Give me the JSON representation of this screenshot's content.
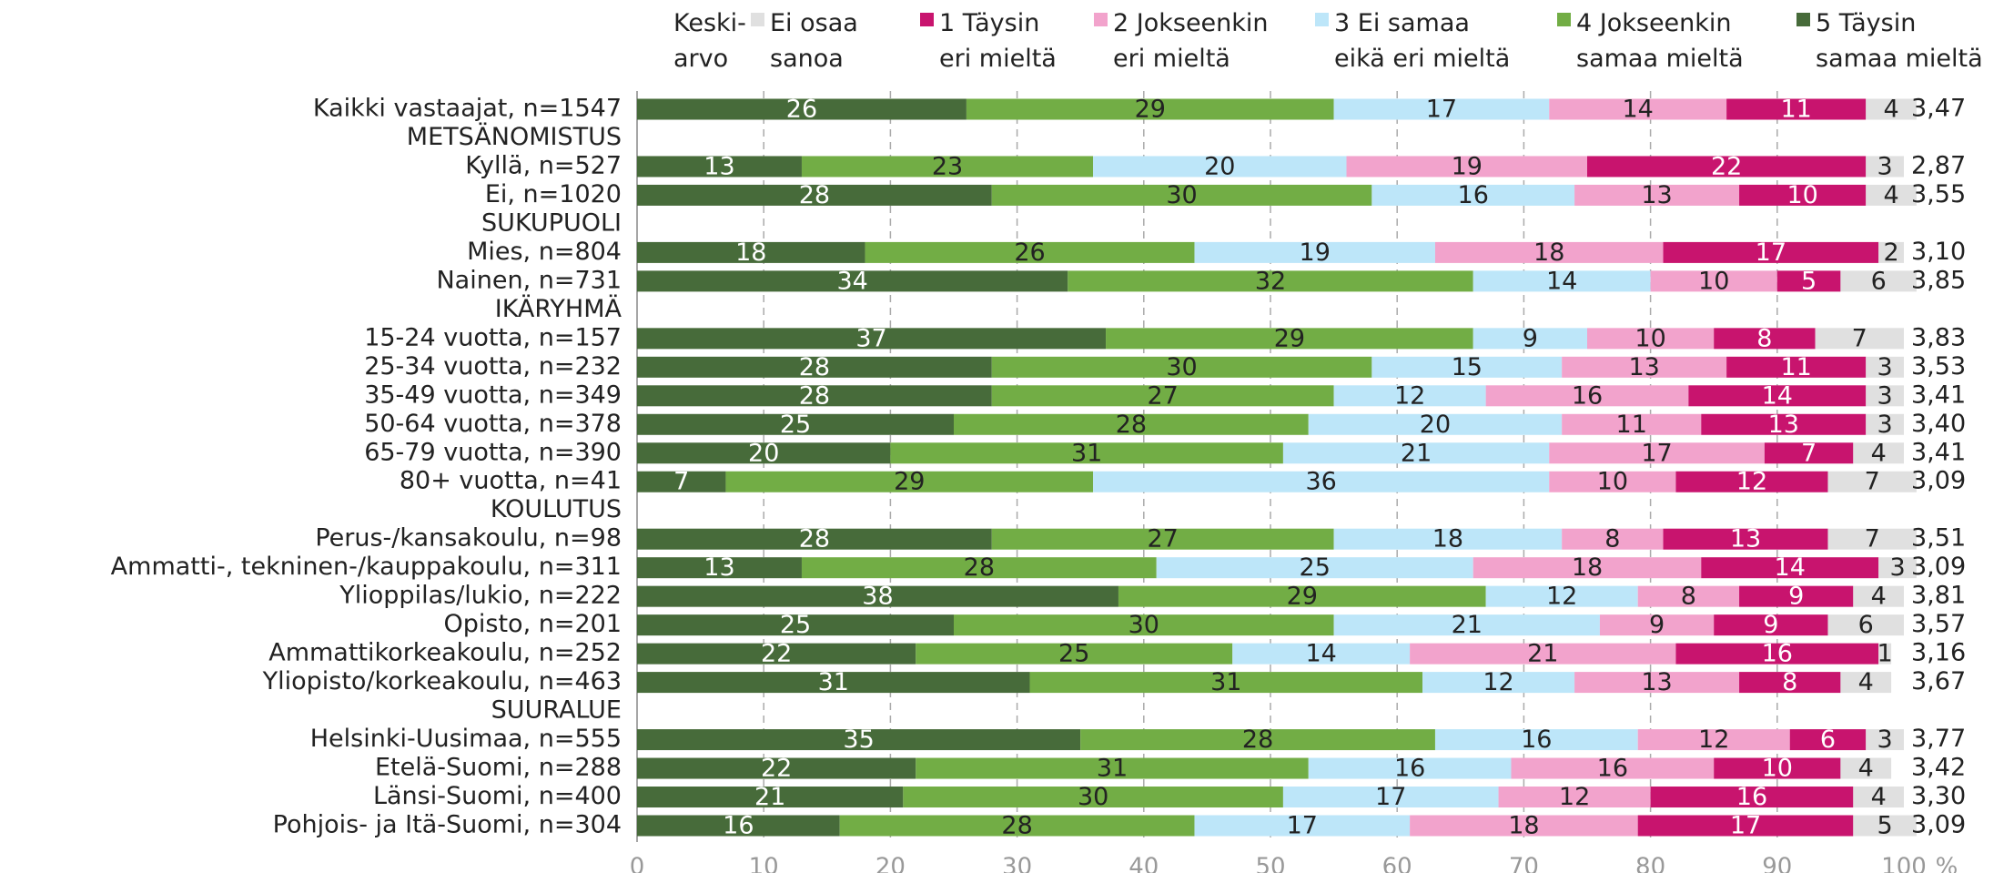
{
  "chart_data": {
    "type": "stacked_barh",
    "categories": [
      "Kaikki vastaajat, n=1547",
      "METSÄNOMISTUS",
      "Kyllä, n=527",
      "Ei, n=1020",
      "SUKUPUOLI",
      "Mies, n=804",
      "Nainen, n=731",
      "IKÄRYHMÄ",
      "15-24 vuotta, n=157",
      "25-34 vuotta, n=232",
      "35-49 vuotta, n=349",
      "50-64 vuotta, n=378",
      "65-79 vuotta, n=390",
      "80+ vuotta, n=41",
      "KOULUTUS",
      "Perus-/kansakoulu, n=98",
      "Ammatti-, tekninen-/kauppakoulu, n=311",
      "Ylioppilas/lukio, n=222",
      "Opisto, n=201",
      "Ammattikorkeakoulu, n=252",
      "Yliopisto/korkeakoulu, n=463",
      "SUURALUE",
      "Helsinki-Uusimaa, n=555",
      "Etelä-Suomi, n=288",
      "Länsi-Suomi, n=400",
      "Pohjois- ja Itä-Suomi, n=304"
    ],
    "series": [
      {
        "name": "5 Täysin\nsamaa mieltä",
        "color": "#476b3a",
        "label_color": "#ffffff",
        "values": [
          26,
          null,
          13,
          28,
          null,
          18,
          34,
          null,
          37,
          28,
          28,
          25,
          20,
          7,
          null,
          28,
          13,
          38,
          25,
          22,
          31,
          null,
          35,
          22,
          21,
          16
        ]
      },
      {
        "name": "4 Jokseenkin\nsamaa mieltä",
        "color": "#72ad45",
        "label_color": "#222222",
        "values": [
          29,
          null,
          23,
          30,
          null,
          26,
          32,
          null,
          29,
          30,
          27,
          28,
          31,
          29,
          null,
          27,
          28,
          29,
          30,
          25,
          31,
          null,
          28,
          31,
          30,
          28
        ]
      },
      {
        "name": "3 Ei samaa\neikä eri mieltä",
        "color": "#bde6f9",
        "label_color": "#222222",
        "values": [
          17,
          null,
          20,
          16,
          null,
          19,
          14,
          null,
          9,
          15,
          12,
          20,
          21,
          36,
          null,
          18,
          25,
          12,
          21,
          14,
          12,
          null,
          16,
          16,
          17,
          17
        ]
      },
      {
        "name": "2 Jokseenkin\neri mieltä",
        "color": "#f2a3cc",
        "label_color": "#222222",
        "values": [
          14,
          null,
          19,
          13,
          null,
          18,
          10,
          null,
          10,
          13,
          16,
          11,
          17,
          10,
          null,
          8,
          18,
          8,
          9,
          21,
          13,
          null,
          12,
          16,
          12,
          18
        ]
      },
      {
        "name": "1 Täysin\neri mieltä",
        "color": "#c8146e",
        "label_color": "#ffffff",
        "values": [
          11,
          null,
          22,
          10,
          null,
          17,
          5,
          null,
          8,
          11,
          14,
          13,
          7,
          12,
          null,
          13,
          14,
          9,
          9,
          16,
          8,
          null,
          6,
          10,
          16,
          17
        ]
      },
      {
        "name": "Ei osaa\nsanoa",
        "color": "#e0e0e0",
        "label_color": "#222222",
        "values": [
          4,
          null,
          3,
          4,
          null,
          2,
          6,
          null,
          7,
          3,
          3,
          3,
          4,
          7,
          null,
          7,
          3,
          4,
          6,
          1,
          4,
          null,
          3,
          4,
          4,
          5
        ]
      }
    ],
    "mean": {
      "name": "Keski-\narvo",
      "values": [
        3.47,
        null,
        2.87,
        3.55,
        null,
        3.1,
        3.85,
        null,
        3.83,
        3.53,
        3.41,
        3.4,
        3.41,
        3.09,
        null,
        3.51,
        3.09,
        3.81,
        3.57,
        3.16,
        3.67,
        null,
        3.77,
        3.42,
        3.3,
        3.09
      ],
      "value_labels": [
        "3,47",
        null,
        "2,87",
        "3,55",
        null,
        "3,10",
        "3,85",
        null,
        "3,83",
        "3,53",
        "3,41",
        "3,40",
        "3,41",
        "3,09",
        null,
        "3,51",
        "3,09",
        "3,81",
        "3,57",
        "3,16",
        "3,67",
        null,
        "3,77",
        "3,42",
        "3,30",
        "3,09"
      ]
    },
    "xlim": [
      0,
      100
    ],
    "xticks": [
      0,
      10,
      20,
      30,
      40,
      50,
      60,
      70,
      80,
      90,
      100
    ],
    "xunit": "%",
    "grid": true
  }
}
